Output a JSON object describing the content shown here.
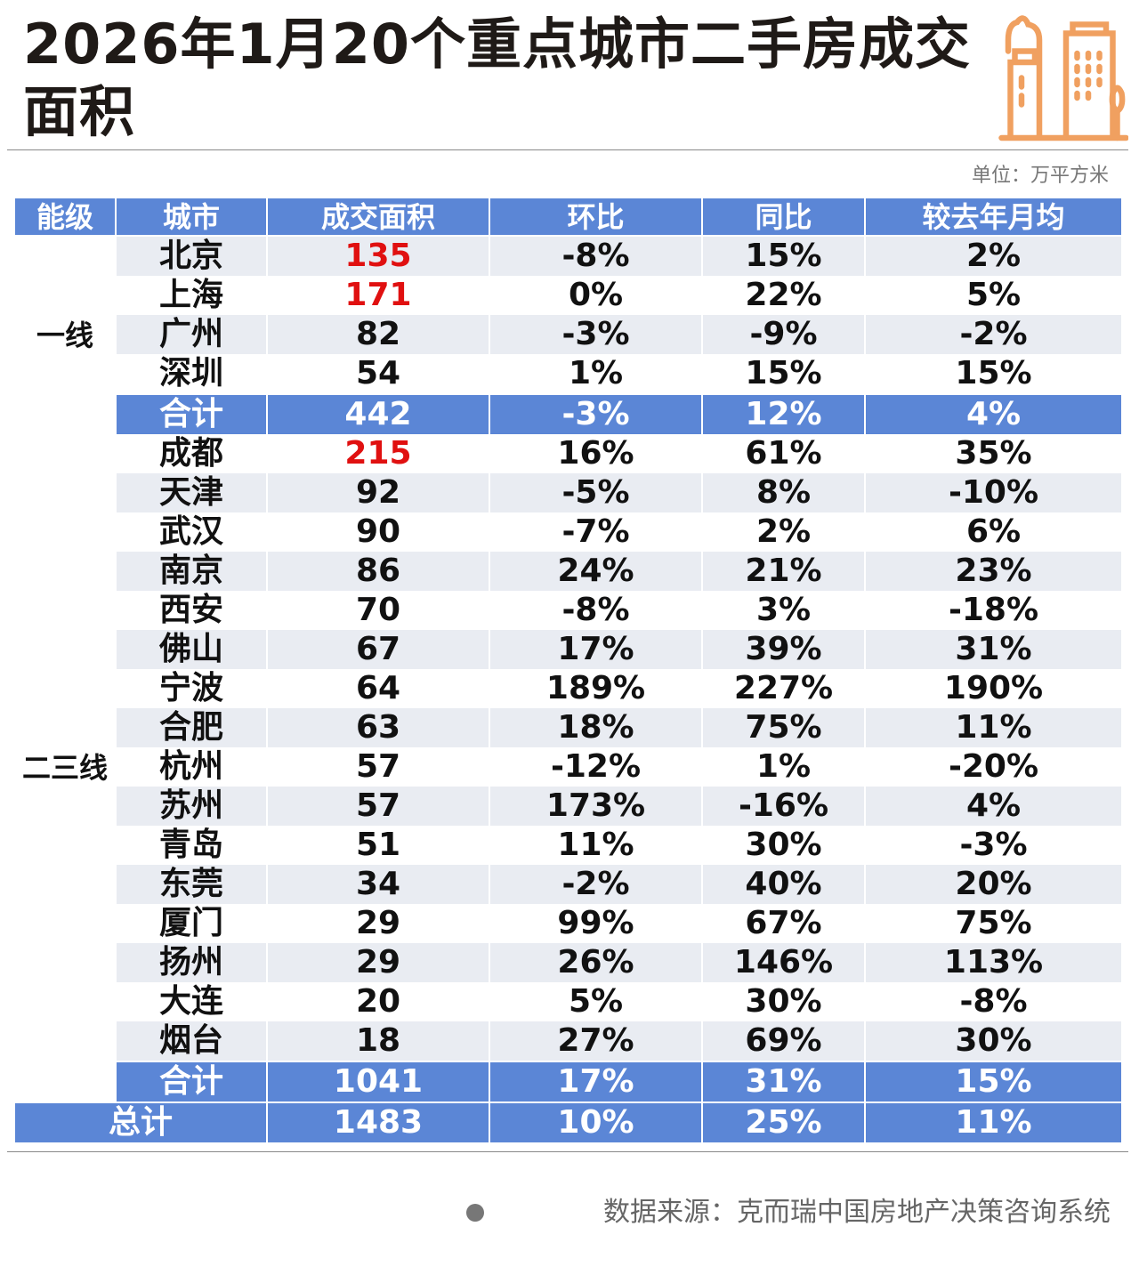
{
  "title": "2026年1月20个重点城市二手房成交面积",
  "unit": "单位：万平方米",
  "headers": [
    "能级",
    "城市",
    "成交面积",
    "环比",
    "同比",
    "较去年月均"
  ],
  "tier1": {
    "label": "一线",
    "rows": [
      [
        "北京",
        "135",
        "-8%",
        "15%",
        "2%"
      ],
      [
        "上海",
        "171",
        "0%",
        "22%",
        "5%"
      ],
      [
        "广州",
        "82",
        "-3%",
        "-9%",
        "-2%"
      ],
      [
        "深圳",
        "54",
        "1%",
        "15%",
        "15%"
      ]
    ],
    "subtotal": [
      "合计",
      "442",
      "-3%",
      "12%",
      "4%"
    ]
  },
  "tier23": {
    "label": "二三线",
    "rows": [
      [
        "成都",
        "215",
        "16%",
        "61%",
        "35%"
      ],
      [
        "天津",
        "92",
        "-5%",
        "8%",
        "-10%"
      ],
      [
        "武汉",
        "90",
        "-7%",
        "2%",
        "6%"
      ],
      [
        "南京",
        "86",
        "24%",
        "21%",
        "23%"
      ],
      [
        "西安",
        "70",
        "-8%",
        "3%",
        "-18%"
      ],
      [
        "佛山",
        "67",
        "17%",
        "39%",
        "31%"
      ],
      [
        "宁波",
        "64",
        "189%",
        "227%",
        "190%"
      ],
      [
        "合肥",
        "63",
        "18%",
        "75%",
        "11%"
      ],
      [
        "杭州",
        "57",
        "-12%",
        "1%",
        "-20%"
      ],
      [
        "苏州",
        "57",
        "173%",
        "-16%",
        "4%"
      ],
      [
        "青岛",
        "51",
        "11%",
        "30%",
        "-3%"
      ],
      [
        "东莞",
        "34",
        "-2%",
        "40%",
        "20%"
      ],
      [
        "厦门",
        "29",
        "99%",
        "67%",
        "75%"
      ],
      [
        "扬州",
        "29",
        "26%",
        "146%",
        "113%"
      ],
      [
        "大连",
        "20",
        "5%",
        "30%",
        "-8%"
      ],
      [
        "烟台",
        "18",
        "27%",
        "69%",
        "30%"
      ]
    ],
    "subtotal": [
      "合计",
      "1041",
      "17%",
      "31%",
      "15%"
    ]
  },
  "total": [
    "总计",
    "1483",
    "10%",
    "25%",
    "11%"
  ],
  "highlight_cities": [
    "北京",
    "上海",
    "成都"
  ],
  "colors": {
    "header": "#5b86d6",
    "highlight": "#e01010",
    "icon": "#f0a060"
  },
  "source": "数据来源：克而瑞中国房地产决策咨询系统"
}
